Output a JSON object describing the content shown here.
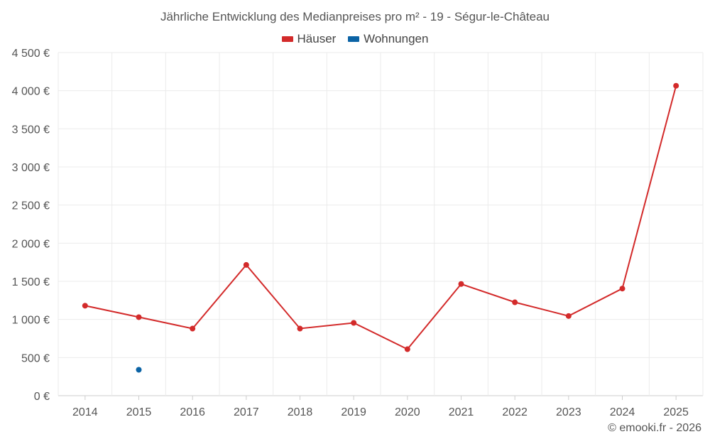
{
  "chart_data": {
    "type": "line",
    "title": "Jährliche Entwicklung des Medianpreises pro m² - 19 - Ségur-le-Château",
    "categories": [
      "2014",
      "2015",
      "2016",
      "2017",
      "2018",
      "2019",
      "2020",
      "2021",
      "2022",
      "2023",
      "2024",
      "2025"
    ],
    "yticks": [
      "0 €",
      "500 €",
      "1 000 €",
      "1 500 €",
      "2 000 €",
      "2 500 €",
      "3 000 €",
      "3 500 €",
      "4 000 €",
      "4 500 €"
    ],
    "ylim": [
      0,
      4500
    ],
    "grid": true,
    "legend_position": "top-center",
    "series": [
      {
        "name": "Häuser",
        "color": "#d32a2a",
        "values": [
          1180,
          1030,
          880,
          1715,
          880,
          955,
          610,
          1465,
          1225,
          1045,
          1405,
          4065
        ]
      },
      {
        "name": "Wohnungen",
        "color": "#0b63a5",
        "values": [
          null,
          340,
          null,
          null,
          null,
          null,
          null,
          null,
          null,
          null,
          null,
          null
        ]
      }
    ]
  },
  "credit": "© emooki.fr - 2026"
}
